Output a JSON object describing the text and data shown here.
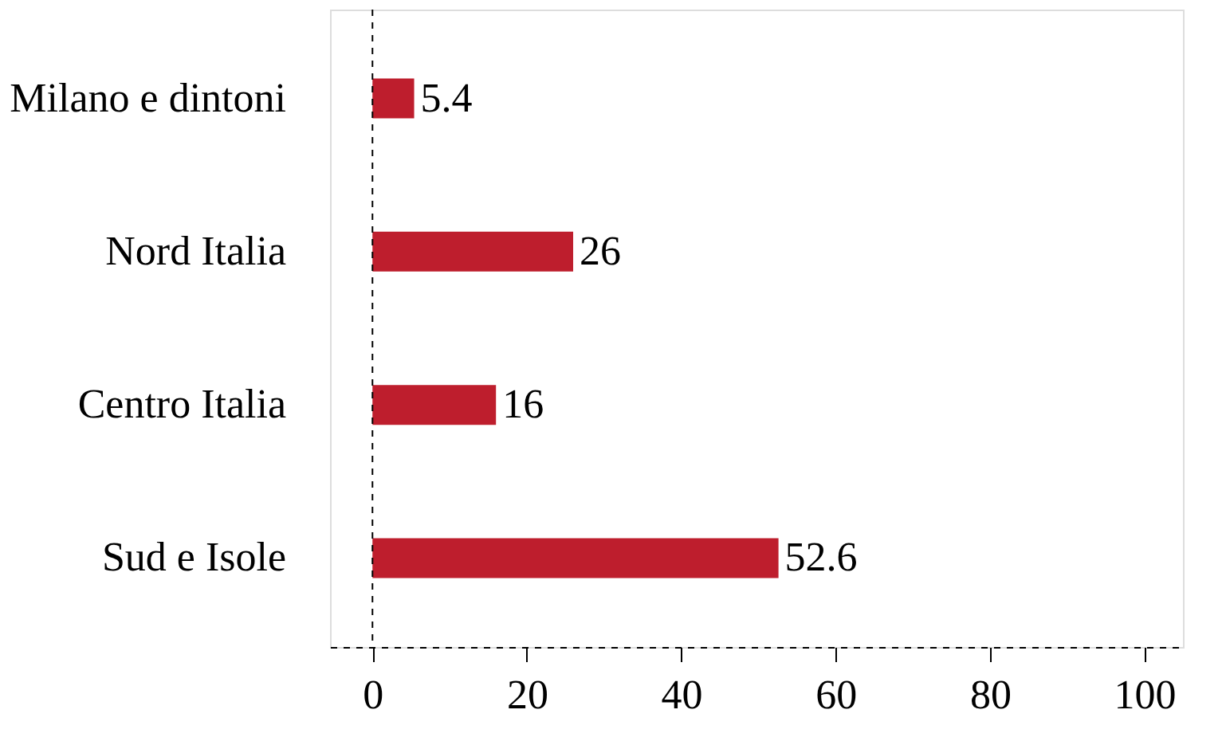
{
  "chart_data": {
    "type": "bar",
    "orientation": "horizontal",
    "categories": [
      "Milano e dintoni",
      "Nord Italia",
      "Centro Italia",
      "Sud e Isole"
    ],
    "values": [
      5.4,
      26,
      16,
      52.6
    ],
    "value_labels": [
      "5.4",
      "26",
      "16",
      "52.6"
    ],
    "color": "#be1e2d",
    "xlim": [
      -5.5,
      105
    ],
    "xticks": [
      0,
      20,
      40,
      60,
      80,
      100
    ],
    "ref_lines": [
      {
        "axis": "x",
        "value": 0,
        "color": "#000000",
        "line_style": "dashed"
      }
    ],
    "grid": false
  }
}
